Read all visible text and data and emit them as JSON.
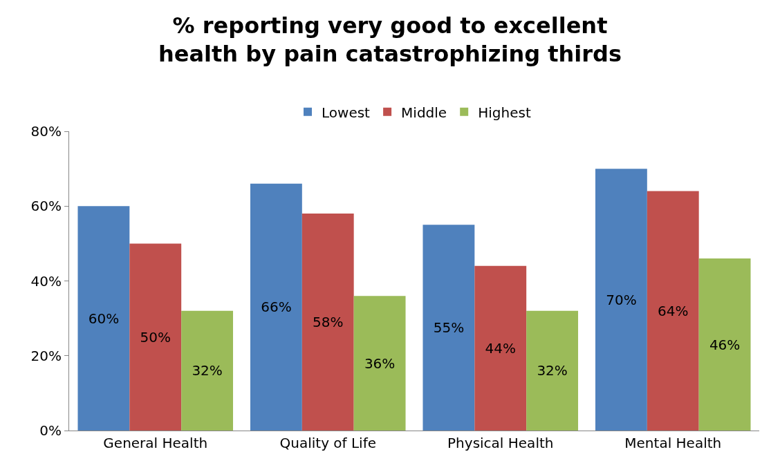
{
  "chart_data": {
    "type": "bar",
    "title": "% reporting very good to excellent health by pain catastrophizing thirds",
    "categories": [
      "General Health",
      "Quality of Life",
      "Physical Health",
      "Mental Health"
    ],
    "series": [
      {
        "name": "Lowest",
        "color": "#4f81bd",
        "values": [
          60,
          66,
          55,
          70
        ],
        "value_labels": [
          "60%",
          "66%",
          "55%",
          "70%"
        ]
      },
      {
        "name": "Middle",
        "color": "#c0504d",
        "values": [
          50,
          58,
          44,
          64
        ],
        "value_labels": [
          "50%",
          "58%",
          "44%",
          "64%"
        ]
      },
      {
        "name": "Highest",
        "color": "#9bbb59",
        "values": [
          32,
          36,
          32,
          46
        ],
        "value_labels": [
          "32%",
          "36%",
          "32%",
          "46%"
        ]
      }
    ],
    "ylim": [
      0,
      80
    ],
    "yticks": [
      {
        "value": 0,
        "label": "0%"
      },
      {
        "value": 20,
        "label": "20%"
      },
      {
        "value": 40,
        "label": "40%"
      },
      {
        "value": 60,
        "label": "60%"
      },
      {
        "value": 80,
        "label": "80%"
      }
    ],
    "grid": false,
    "legend": "top"
  }
}
